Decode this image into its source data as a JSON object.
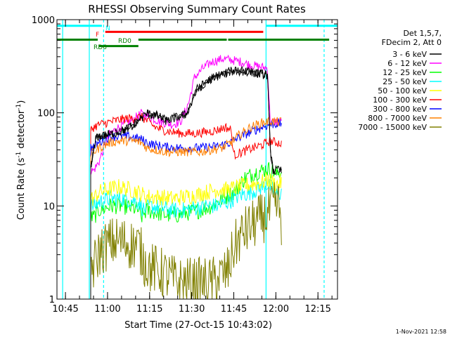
{
  "chart_data": {
    "type": "line",
    "title": "RHESSI Observing Summary Count Rates",
    "xlabel": "Start Time (27-Oct-15 10:43:02)",
    "ylabel": "Count Rate (s",
    "ylabel_sup1": "-1",
    "ylabel_mid": " detector",
    "ylabel_sup2": "-1",
    "ylabel_end": ")",
    "y_scale": "log",
    "ylim": [
      1,
      1000
    ],
    "xlim_minutes": [
      -3.03,
      96.97
    ],
    "x_ticks": [
      {
        "m": 0,
        "label": "10:45"
      },
      {
        "m": 15,
        "label": "11:00"
      },
      {
        "m": 30,
        "label": "11:15"
      },
      {
        "m": 45,
        "label": "11:30"
      },
      {
        "m": 60,
        "label": "11:45"
      },
      {
        "m": 75,
        "label": "12:00"
      },
      {
        "m": 90,
        "label": "12:15"
      }
    ],
    "y_ticks": [
      {
        "v": 1,
        "label": "1"
      },
      {
        "v": 10,
        "label": "10"
      },
      {
        "v": 100,
        "label": "100"
      },
      {
        "v": 1000,
        "label": "1000"
      }
    ],
    "legend_header": [
      "Det 1,5,7,",
      "FDecim 2, Att 0"
    ],
    "legend_position": "right",
    "series": [
      {
        "name": "3 - 6 keV",
        "color": "#000000",
        "points": [
          [
            9,
            25
          ],
          [
            11,
            55
          ],
          [
            15,
            58
          ],
          [
            19,
            62
          ],
          [
            23,
            70
          ],
          [
            27,
            88
          ],
          [
            29,
            98
          ],
          [
            33,
            92
          ],
          [
            36,
            82
          ],
          [
            40,
            90
          ],
          [
            43,
            96
          ],
          [
            47,
            180
          ],
          [
            51,
            222
          ],
          [
            55,
            255
          ],
          [
            59,
            280
          ],
          [
            63,
            280
          ],
          [
            67,
            270
          ],
          [
            70,
            260
          ],
          [
            72,
            255
          ],
          [
            73,
            40
          ],
          [
            74,
            24
          ],
          [
            77,
            24
          ]
        ]
      },
      {
        "name": "6 - 12 keV",
        "color": "#ff00ff",
        "points": [
          [
            9,
            24
          ],
          [
            10,
            24
          ],
          [
            12,
            30
          ],
          [
            14,
            45
          ],
          [
            16,
            60
          ],
          [
            19,
            70
          ],
          [
            23,
            80
          ],
          [
            27,
            98
          ],
          [
            30,
            90
          ],
          [
            34,
            80
          ],
          [
            38,
            75
          ],
          [
            41,
            80
          ],
          [
            44,
            130
          ],
          [
            46,
            240
          ],
          [
            49,
            300
          ],
          [
            52,
            350
          ],
          [
            56,
            380
          ],
          [
            59,
            370
          ],
          [
            63,
            350
          ],
          [
            67,
            320
          ],
          [
            70,
            310
          ],
          [
            72,
            300
          ],
          [
            73,
            80
          ],
          [
            77,
            80
          ]
        ]
      },
      {
        "name": "12 - 25 keV",
        "color": "#00ff00",
        "points": [
          [
            9,
            7.5
          ],
          [
            10,
            7.5
          ],
          [
            12,
            9
          ],
          [
            16,
            10
          ],
          [
            20,
            10
          ],
          [
            24,
            9.5
          ],
          [
            26,
            9
          ],
          [
            27,
            7.5
          ],
          [
            29,
            9
          ],
          [
            32,
            8.5
          ],
          [
            36,
            8
          ],
          [
            40,
            8
          ],
          [
            44,
            8.5
          ],
          [
            48,
            9
          ],
          [
            52,
            10
          ],
          [
            56,
            12
          ],
          [
            60,
            14
          ],
          [
            64,
            20
          ],
          [
            68,
            23
          ],
          [
            72,
            25
          ],
          [
            74,
            24
          ],
          [
            75,
            22
          ],
          [
            77,
            23
          ]
        ]
      },
      {
        "name": "25 - 50 keV",
        "color": "#00ffff",
        "points": [
          [
            9,
            10
          ],
          [
            10,
            10
          ],
          [
            12,
            11
          ],
          [
            16,
            12
          ],
          [
            20,
            12
          ],
          [
            24,
            11.5
          ],
          [
            26,
            11
          ],
          [
            28,
            9
          ],
          [
            30,
            10
          ],
          [
            34,
            9.5
          ],
          [
            38,
            9
          ],
          [
            42,
            9
          ],
          [
            46,
            9.5
          ],
          [
            50,
            10
          ],
          [
            54,
            10
          ],
          [
            58,
            11
          ],
          [
            62,
            13
          ],
          [
            66,
            14
          ],
          [
            70,
            16
          ],
          [
            72,
            17
          ],
          [
            74,
            15
          ],
          [
            75,
            13
          ],
          [
            77,
            14
          ]
        ]
      },
      {
        "name": "50 - 100 keV",
        "color": "#ffff00",
        "points": [
          [
            9,
            12
          ],
          [
            10,
            12
          ],
          [
            12,
            14
          ],
          [
            15,
            15
          ],
          [
            19,
            16
          ],
          [
            23,
            15
          ],
          [
            26,
            14
          ],
          [
            28,
            13
          ],
          [
            30,
            12.5
          ],
          [
            34,
            12.5
          ],
          [
            38,
            12
          ],
          [
            42,
            12.5
          ],
          [
            46,
            13
          ],
          [
            50,
            14
          ],
          [
            54,
            15
          ],
          [
            58,
            15
          ],
          [
            62,
            16
          ],
          [
            66,
            17
          ],
          [
            70,
            18
          ],
          [
            72,
            19
          ],
          [
            74,
            18
          ],
          [
            75,
            17
          ],
          [
            77,
            18
          ]
        ]
      },
      {
        "name": "100 - 300 keV",
        "color": "#ff0000",
        "points": [
          [
            9,
            65
          ],
          [
            10,
            70
          ],
          [
            12,
            75
          ],
          [
            16,
            80
          ],
          [
            20,
            85
          ],
          [
            24,
            88
          ],
          [
            27,
            90
          ],
          [
            29,
            82
          ],
          [
            32,
            70
          ],
          [
            35,
            65
          ],
          [
            38,
            62
          ],
          [
            42,
            60
          ],
          [
            46,
            60
          ],
          [
            50,
            62
          ],
          [
            54,
            65
          ],
          [
            57,
            70
          ],
          [
            59,
            66
          ],
          [
            60,
            35
          ],
          [
            63,
            38
          ],
          [
            67,
            42
          ],
          [
            70,
            45
          ],
          [
            73,
            50
          ],
          [
            75,
            48
          ],
          [
            77,
            47
          ]
        ]
      },
      {
        "name": "300 - 800 keV",
        "color": "#0000ff",
        "points": [
          [
            9,
            43
          ],
          [
            10,
            43
          ],
          [
            12,
            48
          ],
          [
            16,
            55
          ],
          [
            20,
            56
          ],
          [
            24,
            55
          ],
          [
            27,
            52
          ],
          [
            29,
            48
          ],
          [
            32,
            45
          ],
          [
            36,
            43
          ],
          [
            40,
            42
          ],
          [
            44,
            42
          ],
          [
            48,
            42
          ],
          [
            52,
            43
          ],
          [
            56,
            45
          ],
          [
            59,
            48
          ],
          [
            62,
            55
          ],
          [
            66,
            62
          ],
          [
            70,
            70
          ],
          [
            73,
            75
          ],
          [
            75,
            76
          ],
          [
            77,
            76
          ]
        ]
      },
      {
        "name": "800 - 7000 keV",
        "color": "#ff8000",
        "points": [
          [
            9,
            36
          ],
          [
            10,
            38
          ],
          [
            12,
            42
          ],
          [
            16,
            48
          ],
          [
            20,
            50
          ],
          [
            24,
            50
          ],
          [
            27,
            48
          ],
          [
            29,
            42
          ],
          [
            32,
            40
          ],
          [
            36,
            38
          ],
          [
            40,
            38
          ],
          [
            44,
            38
          ],
          [
            48,
            38
          ],
          [
            52,
            40
          ],
          [
            56,
            42
          ],
          [
            59,
            48
          ],
          [
            62,
            58
          ],
          [
            66,
            70
          ],
          [
            70,
            78
          ],
          [
            73,
            82
          ],
          [
            75,
            80
          ],
          [
            77,
            80
          ]
        ]
      },
      {
        "name": "7000 - 15000 keV",
        "color": "#808000",
        "points": [
          [
            9,
            2.5
          ],
          [
            10,
            2.2
          ],
          [
            12,
            3.2
          ],
          [
            14,
            3.6
          ],
          [
            16,
            4
          ],
          [
            19,
            4.2
          ],
          [
            22,
            4
          ],
          [
            24,
            3.8
          ],
          [
            26,
            3.8
          ],
          [
            28,
            2.6
          ],
          [
            30,
            2.2
          ],
          [
            33,
            2
          ],
          [
            36,
            1.8
          ],
          [
            40,
            1.5
          ],
          [
            44,
            1.5
          ],
          [
            48,
            1.5
          ],
          [
            52,
            1.5
          ],
          [
            56,
            1.8
          ],
          [
            58,
            2
          ],
          [
            60,
            3.5
          ],
          [
            63,
            5
          ],
          [
            66,
            6
          ],
          [
            69,
            7
          ],
          [
            72,
            8
          ],
          [
            74,
            9.5
          ],
          [
            76,
            10
          ],
          [
            77,
            7
          ]
        ]
      },
      {
        "name": "3 - 6 keV",
        "color": "#000000",
        "points": [
          [
            9,
            25
          ],
          [
            11,
            55
          ],
          [
            15,
            58
          ],
          [
            19,
            62
          ],
          [
            23,
            70
          ],
          [
            27,
            88
          ],
          [
            29,
            98
          ],
          [
            33,
            92
          ],
          [
            36,
            82
          ],
          [
            40,
            90
          ],
          [
            43,
            96
          ],
          [
            47,
            180
          ],
          [
            51,
            222
          ],
          [
            55,
            255
          ],
          [
            59,
            280
          ],
          [
            63,
            280
          ],
          [
            67,
            270
          ],
          [
            70,
            260
          ],
          [
            72,
            255
          ],
          [
            73,
            40
          ],
          [
            74,
            24
          ],
          [
            77,
            24
          ]
        ]
      }
    ],
    "flag_bars": [
      {
        "label": "F",
        "color": "#ff0000",
        "label_color": "#ff0000",
        "y_value": 740,
        "segments": [
          [
            14.2,
            70.5
          ]
        ]
      },
      {
        "label": "N",
        "color": "#00ffff",
        "label_color": "#00ffff",
        "y_value": 860,
        "segments": [
          [
            -3.03,
            13
          ],
          [
            71.5,
            96.97
          ]
        ]
      },
      {
        "label": "RD0",
        "color": "#008000",
        "label_color": "#008000",
        "y_value": 610,
        "segments": [
          [
            -3.03,
            11.5
          ],
          [
            26,
            57.5
          ],
          [
            58,
            94
          ]
        ]
      },
      {
        "label": "RD6",
        "color": "#008000",
        "label_color": "#008000",
        "y_value": 520,
        "segments": [
          [
            12,
            26
          ]
        ]
      }
    ],
    "vertical_lines": [
      {
        "m": 8.5,
        "color": "#00ffff",
        "style": "solid"
      },
      {
        "m": 13.6,
        "color": "#00ffff",
        "style": "dashed"
      },
      {
        "m": 71.5,
        "color": "#00ffff",
        "style": "solid"
      },
      {
        "m": 92.2,
        "color": "#00ffff",
        "style": "dashed"
      },
      {
        "m": -1.0,
        "color": "#00ffff",
        "style": "solid"
      }
    ],
    "timestamp": "1-Nov-2021 12:58",
    "grid": false
  }
}
